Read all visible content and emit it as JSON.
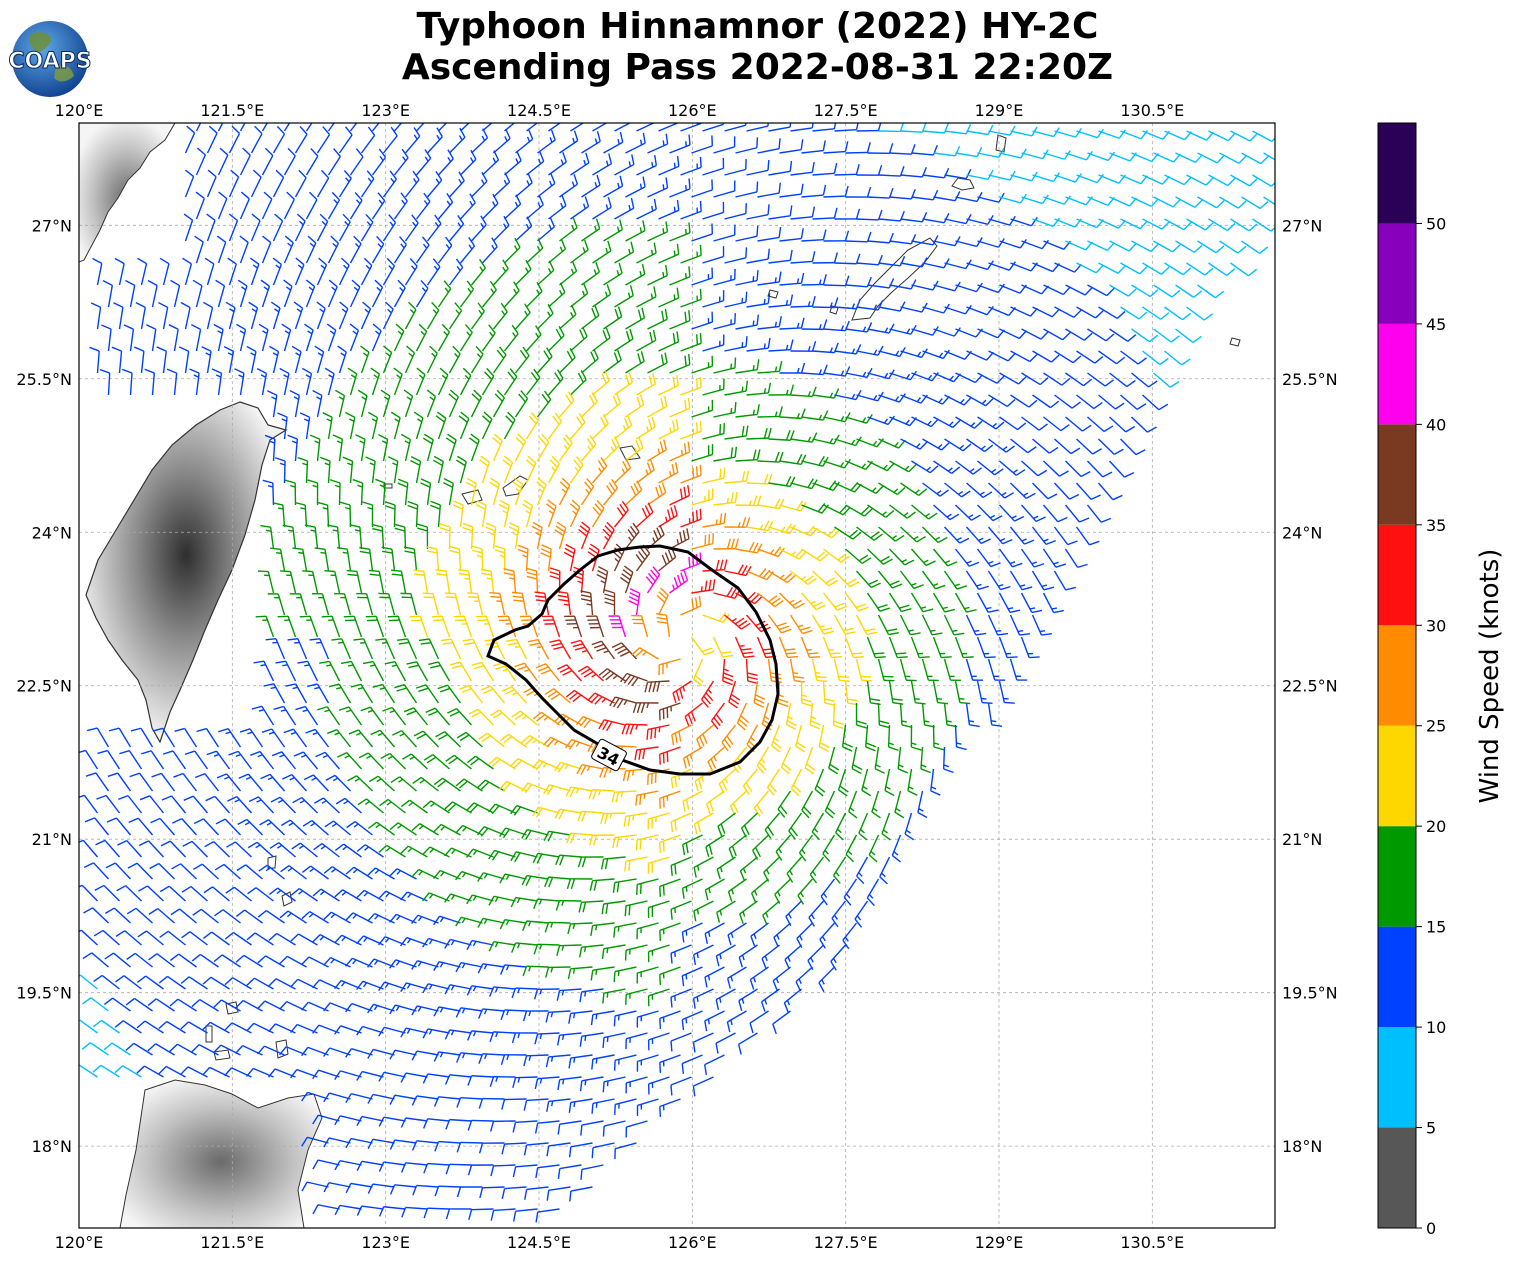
{
  "header": {
    "title_line1": "Typhoon Hinnamnor (2022) HY-2C",
    "title_line2": "Ascending Pass 2022-08-31 22:20Z",
    "logo_text": "COAPS"
  },
  "map": {
    "lon_range": [
      120.0,
      131.7
    ],
    "lat_range": [
      17.2,
      28.0
    ],
    "lon_ticks": [
      120,
      121.5,
      123,
      124.5,
      126,
      127.5,
      129,
      130.5
    ],
    "lon_labels": [
      "120°E",
      "121.5°E",
      "123°E",
      "124.5°E",
      "126°E",
      "127.5°E",
      "129°E",
      "130.5°E"
    ],
    "lat_ticks": [
      18,
      19.5,
      21,
      22.5,
      24,
      25.5,
      27
    ],
    "lat_labels": [
      "18°N",
      "19.5°N",
      "21°N",
      "22.5°N",
      "24°N",
      "25.5°N",
      "27°N"
    ],
    "gridlines": true,
    "storm_center": [
      125.9,
      22.95
    ],
    "contour_label": "34",
    "swath_edge": [
      [
        126.0,
        28.0
      ],
      [
        131.7,
        28.0
      ],
      [
        131.7,
        27.4
      ],
      [
        127.5,
        19.8
      ],
      [
        124.6,
        17.2
      ],
      [
        120.0,
        17.2
      ],
      [
        120.0,
        28.0
      ]
    ]
  },
  "colorbar": {
    "label": "Wind Speed (knots)",
    "tick_values": [
      0,
      5,
      10,
      15,
      20,
      25,
      30,
      35,
      40,
      45,
      50
    ],
    "bins": [
      {
        "min": 0,
        "max": 5,
        "color": "#575757"
      },
      {
        "min": 5,
        "max": 10,
        "color": "#00bfff"
      },
      {
        "min": 10,
        "max": 15,
        "color": "#0040ff"
      },
      {
        "min": 15,
        "max": 20,
        "color": "#009900"
      },
      {
        "min": 20,
        "max": 25,
        "color": "#ffd700"
      },
      {
        "min": 25,
        "max": 30,
        "color": "#ff8c00"
      },
      {
        "min": 30,
        "max": 35,
        "color": "#ff1010"
      },
      {
        "min": 35,
        "max": 40,
        "color": "#7a3a22"
      },
      {
        "min": 40,
        "max": 45,
        "color": "#ff00ee"
      },
      {
        "min": 45,
        "max": 50,
        "color": "#8800bb"
      },
      {
        "min": 50,
        "max": 55,
        "color": "#2b0057"
      }
    ]
  }
}
